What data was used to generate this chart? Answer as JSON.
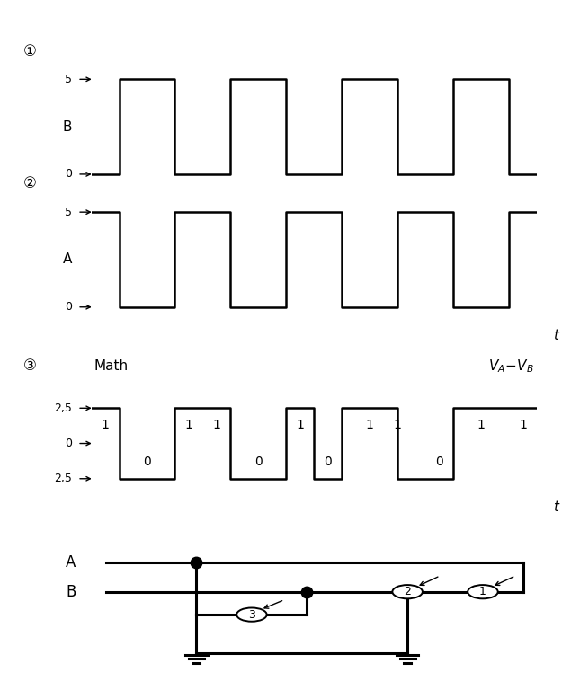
{
  "bg_color": "#ffffff",
  "line_color": "#000000",
  "signal_B": {
    "label": "B",
    "y_vals": [
      0,
      0,
      5,
      5,
      0,
      0,
      5,
      5,
      0,
      0,
      5,
      5,
      0,
      0,
      5,
      5,
      0,
      0
    ],
    "x_vals": [
      0,
      1,
      1,
      3,
      3,
      5,
      5,
      7,
      7,
      9,
      9,
      11,
      11,
      13,
      13,
      15,
      15,
      16
    ]
  },
  "signal_A": {
    "label": "A",
    "y_vals": [
      5,
      5,
      0,
      0,
      5,
      5,
      0,
      0,
      5,
      5,
      0,
      0,
      5,
      5,
      0,
      0,
      5,
      5
    ],
    "x_vals": [
      0,
      1,
      1,
      3,
      3,
      5,
      5,
      7,
      7,
      9,
      9,
      11,
      11,
      13,
      13,
      15,
      15,
      16
    ]
  },
  "math_signal": {
    "y_vals": [
      2.5,
      2.5,
      -2.5,
      -2.5,
      2.5,
      2.5,
      2.5,
      2.5,
      -2.5,
      -2.5,
      2.5,
      2.5,
      -2.5,
      -2.5,
      2.5,
      2.5,
      2.5,
      2.5,
      -2.5,
      -2.5,
      2.5,
      2.5,
      2.5,
      2.5
    ],
    "x_vals": [
      0,
      1,
      1,
      3,
      3,
      4,
      4,
      5,
      5,
      7,
      7,
      8,
      8,
      9,
      9,
      10,
      10,
      11,
      11,
      13,
      13,
      14,
      14,
      16
    ]
  },
  "bit_vals": [
    1,
    0,
    1,
    1,
    0,
    1,
    0,
    1,
    1,
    0,
    1,
    1
  ],
  "bit_x": [
    0.5,
    2.0,
    3.5,
    4.5,
    6.0,
    7.5,
    8.5,
    10.0,
    11.0,
    12.5,
    14.0,
    15.5
  ]
}
